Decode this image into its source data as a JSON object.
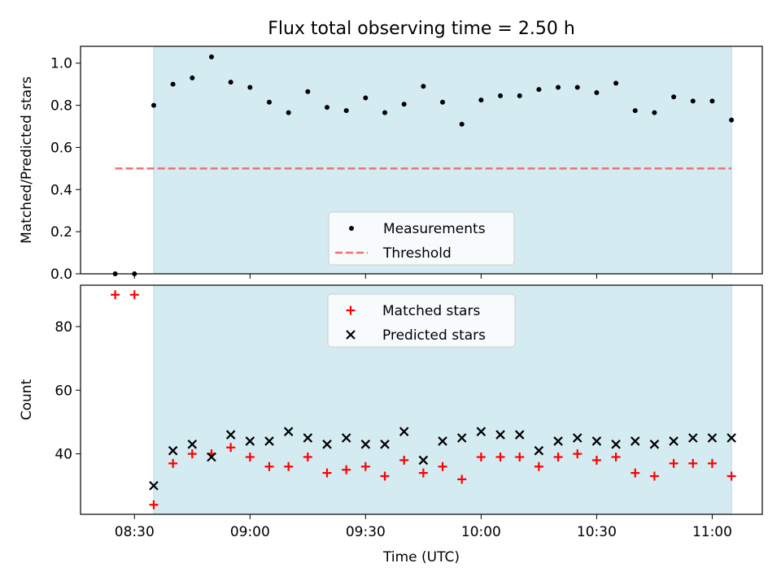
{
  "title": "Flux total observing time = 2.50 h",
  "chart_data": [
    {
      "type": "scatter",
      "title": "Flux total observing time = 2.50 h",
      "xlabel": "",
      "ylabel": "Matched/Predicted stars",
      "ylim": [
        0.0,
        1.08
      ],
      "yticks": [
        0.0,
        0.2,
        0.4,
        0.6,
        0.8,
        1.0
      ],
      "ytick_labels": [
        "0.0",
        "0.2",
        "0.4",
        "0.6",
        "0.8",
        "1.0"
      ],
      "legend_position": "lower-center",
      "shaded_interval": [
        "08:35",
        "11:05"
      ],
      "series": [
        {
          "name": "Measurements",
          "marker": "dot",
          "color": "#000000",
          "x": [
            "08:25",
            "08:30",
            "08:35",
            "08:40",
            "08:45",
            "08:50",
            "08:55",
            "09:00",
            "09:05",
            "09:10",
            "09:15",
            "09:20",
            "09:25",
            "09:30",
            "09:35",
            "09:40",
            "09:45",
            "09:50",
            "09:55",
            "10:00",
            "10:05",
            "10:10",
            "10:15",
            "10:20",
            "10:25",
            "10:30",
            "10:35",
            "10:40",
            "10:45",
            "10:50",
            "10:55",
            "11:00",
            "11:05"
          ],
          "y": [
            0.0,
            0.0,
            0.8,
            0.9,
            0.93,
            1.03,
            0.91,
            0.885,
            0.815,
            0.765,
            0.865,
            0.79,
            0.775,
            0.835,
            0.765,
            0.805,
            0.89,
            0.815,
            0.71,
            0.825,
            0.845,
            0.845,
            0.875,
            0.885,
            0.885,
            0.86,
            0.905,
            0.775,
            0.765,
            0.84,
            0.82,
            0.82,
            0.73
          ]
        },
        {
          "name": "Threshold",
          "style": "dashed",
          "color": "#f07070",
          "x": [
            "08:25",
            "11:05"
          ],
          "y": [
            0.5,
            0.5
          ]
        }
      ]
    },
    {
      "type": "scatter",
      "xlabel": "Time (UTC)",
      "ylabel": "Count",
      "ylim": [
        21,
        93
      ],
      "yticks": [
        40,
        60,
        80
      ],
      "ytick_labels": [
        "40",
        "60",
        "80"
      ],
      "xticks": [
        "08:30",
        "09:00",
        "09:30",
        "10:00",
        "10:30",
        "11:00"
      ],
      "xtick_labels": [
        "08:30",
        "09:00",
        "09:30",
        "10:00",
        "10:30",
        "11:00"
      ],
      "legend_position": "top-center",
      "shaded_interval": [
        "08:35",
        "11:05"
      ],
      "series": [
        {
          "name": "Matched stars",
          "marker": "plus",
          "color": "#ff0000",
          "x": [
            "08:25",
            "08:30",
            "08:35",
            "08:40",
            "08:45",
            "08:50",
            "08:55",
            "09:00",
            "09:05",
            "09:10",
            "09:15",
            "09:20",
            "09:25",
            "09:30",
            "09:35",
            "09:40",
            "09:45",
            "09:50",
            "09:55",
            "10:00",
            "10:05",
            "10:10",
            "10:15",
            "10:20",
            "10:25",
            "10:30",
            "10:35",
            "10:40",
            "10:45",
            "10:50",
            "10:55",
            "11:00",
            "11:05"
          ],
          "y": [
            90,
            90,
            24,
            37,
            40,
            40,
            42,
            39,
            36,
            36,
            39,
            34,
            35,
            36,
            33,
            38,
            34,
            36,
            32,
            39,
            39,
            39,
            36,
            39,
            40,
            38,
            39,
            34,
            33,
            37,
            37,
            37,
            33
          ]
        },
        {
          "name": "Predicted stars",
          "marker": "x",
          "color": "#000000",
          "x": [
            "08:35",
            "08:40",
            "08:45",
            "08:50",
            "08:55",
            "09:00",
            "09:05",
            "09:10",
            "09:15",
            "09:20",
            "09:25",
            "09:30",
            "09:35",
            "09:40",
            "09:45",
            "09:50",
            "09:55",
            "10:00",
            "10:05",
            "10:10",
            "10:15",
            "10:20",
            "10:25",
            "10:30",
            "10:35",
            "10:40",
            "10:45",
            "10:50",
            "10:55",
            "11:00",
            "11:05"
          ],
          "y": [
            30,
            41,
            43,
            39,
            46,
            44,
            44,
            47,
            45,
            43,
            45,
            43,
            43,
            47,
            38,
            44,
            45,
            47,
            46,
            46,
            41,
            44,
            45,
            44,
            43,
            44,
            43,
            44,
            45,
            45,
            45
          ]
        }
      ]
    }
  ],
  "colors": {
    "shade": "#d4ebf1",
    "shade_edge": "#b0dbe3",
    "matched": "#ff0000",
    "threshold": "#f07070",
    "measure": "#000000"
  }
}
